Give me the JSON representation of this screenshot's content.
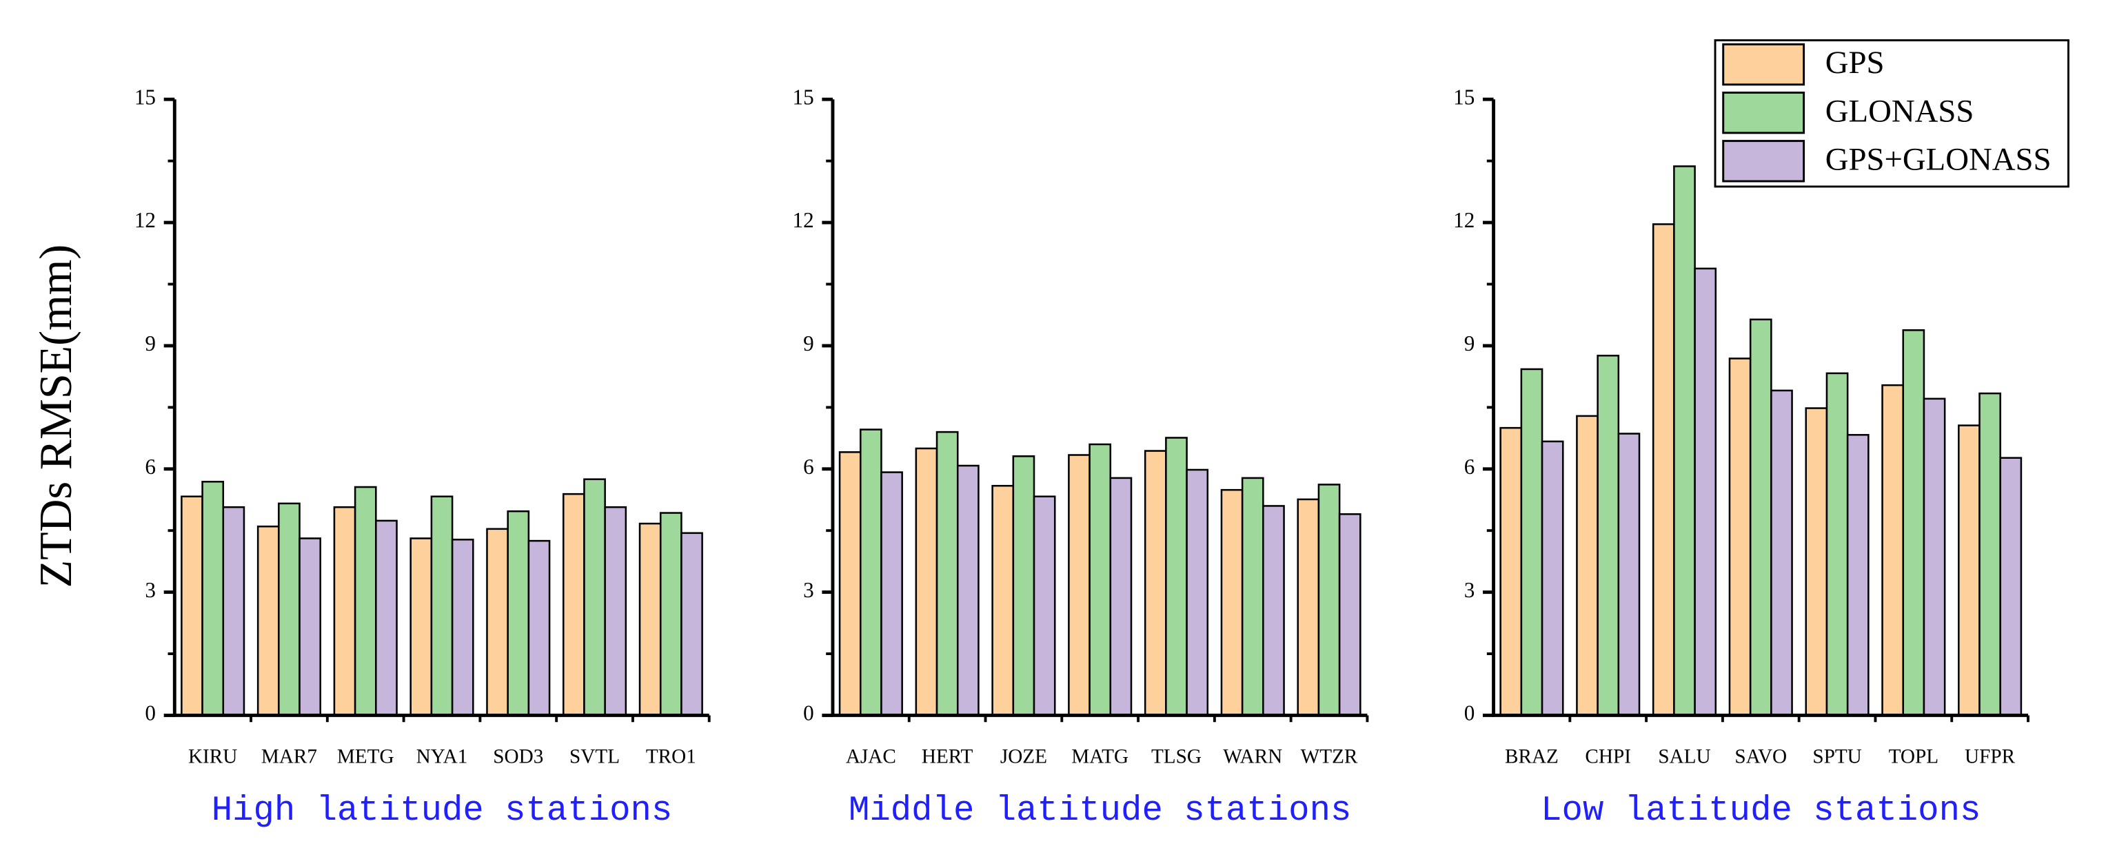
{
  "chart_data": [
    {
      "type": "bar",
      "y_label": "ZTDs RMSE(mm)",
      "x_label": "High latitude stations",
      "categories": [
        "KIRU",
        "MAR7",
        "METG",
        "NYA1",
        "SOD3",
        "SVTL",
        "TRO1"
      ],
      "series": [
        {
          "name": "GPS",
          "color": "#fdd09c",
          "values": [
            5.33,
            4.6,
            5.07,
            4.31,
            4.54,
            5.39,
            4.67
          ]
        },
        {
          "name": "GLONASS",
          "color": "#9ed89b",
          "values": [
            5.69,
            5.16,
            5.56,
            5.33,
            4.97,
            5.75,
            4.93
          ]
        },
        {
          "name": "GPS+GLONASS",
          "color": "#c7b6dc",
          "values": [
            5.07,
            4.31,
            4.74,
            4.28,
            4.25,
            5.07,
            4.44
          ]
        }
      ],
      "ylim": [
        0,
        15
      ],
      "yticks": [
        0,
        3,
        6,
        9,
        12,
        15
      ]
    },
    {
      "type": "bar",
      "x_label": "Middle latitude stations",
      "categories": [
        "AJAC",
        "HERT",
        "JOZE",
        "MATG",
        "TLSG",
        "WARN",
        "WTZR"
      ],
      "series": [
        {
          "name": "GPS",
          "color": "#fdd09c",
          "values": [
            6.41,
            6.5,
            5.59,
            6.34,
            6.44,
            5.49,
            5.26
          ]
        },
        {
          "name": "GLONASS",
          "color": "#9ed89b",
          "values": [
            6.96,
            6.9,
            6.31,
            6.6,
            6.76,
            5.78,
            5.62
          ]
        },
        {
          "name": "GPS+GLONASS",
          "color": "#c7b6dc",
          "values": [
            5.92,
            6.08,
            5.33,
            5.78,
            5.98,
            5.1,
            4.9
          ]
        }
      ],
      "ylim": [
        0,
        15
      ],
      "yticks": [
        0,
        3,
        6,
        9,
        12,
        15
      ]
    },
    {
      "type": "bar",
      "x_label": "Low latitude stations",
      "categories": [
        "BRAZ",
        "CHPI",
        "SALU",
        "SAVO",
        "SPTU",
        "TOPL",
        "UFPR"
      ],
      "series": [
        {
          "name": "GPS",
          "color": "#fdd09c",
          "values": [
            7.0,
            7.29,
            11.96,
            8.69,
            7.48,
            8.04,
            7.06
          ]
        },
        {
          "name": "GLONASS",
          "color": "#9ed89b",
          "values": [
            8.43,
            8.76,
            13.37,
            9.64,
            8.33,
            9.38,
            7.84
          ]
        },
        {
          "name": "GPS+GLONASS",
          "color": "#c7b6dc",
          "values": [
            6.67,
            6.86,
            10.88,
            7.91,
            6.83,
            7.71,
            6.27
          ]
        }
      ],
      "ylim": [
        0,
        15
      ],
      "yticks": [
        0,
        3,
        6,
        9,
        12,
        15
      ],
      "legend": "upper right"
    }
  ]
}
